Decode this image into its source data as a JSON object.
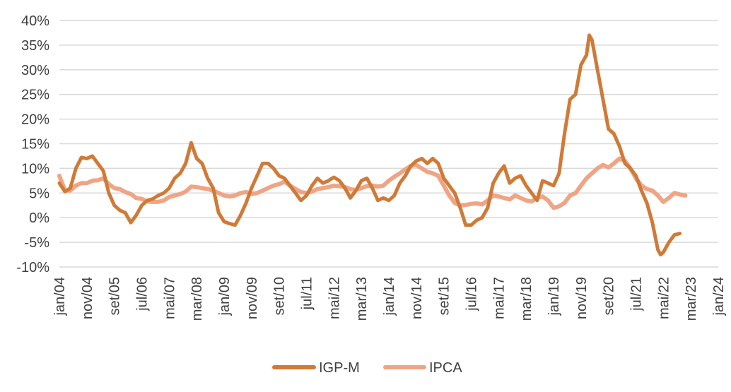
{
  "chart_data": {
    "type": "line",
    "title": "",
    "xlabel": "",
    "ylabel": "",
    "ylim": [
      -10,
      40
    ],
    "y_ticks": [
      -10,
      -5,
      0,
      5,
      10,
      15,
      20,
      25,
      30,
      35,
      40
    ],
    "y_tick_labels": [
      "-10%",
      "-5%",
      "0%",
      "5%",
      "10%",
      "15%",
      "20%",
      "25%",
      "30%",
      "35%",
      "40%"
    ],
    "x_tick_labels": [
      "jan/04",
      "nov/04",
      "set/05",
      "jul/06",
      "mai/07",
      "mar/08",
      "jan/09",
      "nov/09",
      "set/10",
      "jul/11",
      "mai/12",
      "mar/13",
      "jan/14",
      "nov/14",
      "set/15",
      "jul/16",
      "mai/17",
      "mar/18",
      "jan/19",
      "nov/19",
      "set/20",
      "jul/21",
      "mai/22",
      "mar/23",
      "jan/24"
    ],
    "grid": true,
    "legend_position": "bottom",
    "series": [
      {
        "name": "IGP-M",
        "color": "#d07a38",
        "anchors": [
          [
            0,
            7.0
          ],
          [
            2,
            5.3
          ],
          [
            4,
            6.0
          ],
          [
            6,
            10.0
          ],
          [
            8,
            12.2
          ],
          [
            10,
            12.0
          ],
          [
            12,
            12.5
          ],
          [
            14,
            11.0
          ],
          [
            16,
            9.5
          ],
          [
            18,
            5.0
          ],
          [
            20,
            2.5
          ],
          [
            22,
            1.5
          ],
          [
            24,
            1.0
          ],
          [
            26,
            -1.0
          ],
          [
            28,
            0.5
          ],
          [
            30,
            2.5
          ],
          [
            32,
            3.5
          ],
          [
            34,
            3.8
          ],
          [
            36,
            4.5
          ],
          [
            38,
            5.0
          ],
          [
            40,
            6.0
          ],
          [
            42,
            8.0
          ],
          [
            44,
            9.0
          ],
          [
            46,
            11.0
          ],
          [
            48,
            15.2
          ],
          [
            50,
            12.0
          ],
          [
            52,
            11.0
          ],
          [
            54,
            8.0
          ],
          [
            56,
            6.0
          ],
          [
            58,
            1.0
          ],
          [
            60,
            -0.8
          ],
          [
            62,
            -1.2
          ],
          [
            64,
            -1.5
          ],
          [
            66,
            0.5
          ],
          [
            68,
            3.0
          ],
          [
            70,
            6.0
          ],
          [
            72,
            8.5
          ],
          [
            74,
            11.0
          ],
          [
            76,
            11.0
          ],
          [
            78,
            10.0
          ],
          [
            80,
            8.5
          ],
          [
            82,
            8.0
          ],
          [
            84,
            6.5
          ],
          [
            86,
            5.0
          ],
          [
            88,
            3.5
          ],
          [
            90,
            4.5
          ],
          [
            92,
            6.5
          ],
          [
            94,
            8.0
          ],
          [
            96,
            7.0
          ],
          [
            98,
            7.5
          ],
          [
            100,
            8.2
          ],
          [
            102,
            7.5
          ],
          [
            104,
            6.0
          ],
          [
            106,
            4.0
          ],
          [
            108,
            5.5
          ],
          [
            110,
            7.5
          ],
          [
            112,
            8.0
          ],
          [
            114,
            6.0
          ],
          [
            116,
            3.5
          ],
          [
            118,
            4.0
          ],
          [
            120,
            3.5
          ],
          [
            122,
            4.5
          ],
          [
            124,
            7.0
          ],
          [
            126,
            8.5
          ],
          [
            128,
            10.5
          ],
          [
            130,
            11.5
          ],
          [
            132,
            12.0
          ],
          [
            134,
            11.0
          ],
          [
            136,
            12.0
          ],
          [
            138,
            11.0
          ],
          [
            140,
            8.0
          ],
          [
            142,
            6.5
          ],
          [
            144,
            5.0
          ],
          [
            146,
            2.0
          ],
          [
            148,
            -1.5
          ],
          [
            150,
            -1.5
          ],
          [
            152,
            -0.5
          ],
          [
            154,
            0.0
          ],
          [
            156,
            2.0
          ],
          [
            158,
            7.0
          ],
          [
            160,
            9.0
          ],
          [
            162,
            10.5
          ],
          [
            164,
            7.0
          ],
          [
            166,
            8.0
          ],
          [
            168,
            8.5
          ],
          [
            170,
            6.5
          ],
          [
            172,
            5.0
          ],
          [
            174,
            3.5
          ],
          [
            176,
            7.5
          ],
          [
            178,
            7.0
          ],
          [
            180,
            6.5
          ],
          [
            182,
            9.0
          ],
          [
            184,
            17.0
          ],
          [
            186,
            24.0
          ],
          [
            188,
            25.0
          ],
          [
            190,
            31.0
          ],
          [
            192,
            33.0
          ],
          [
            193,
            37.0
          ],
          [
            194,
            36.0
          ],
          [
            196,
            30.0
          ],
          [
            198,
            24.0
          ],
          [
            200,
            18.0
          ],
          [
            202,
            17.0
          ],
          [
            204,
            14.5
          ],
          [
            206,
            11.0
          ],
          [
            208,
            10.0
          ],
          [
            210,
            8.5
          ],
          [
            212,
            5.5
          ],
          [
            214,
            3.0
          ],
          [
            216,
            -1.0
          ],
          [
            218,
            -6.5
          ],
          [
            219,
            -7.5
          ],
          [
            220,
            -7.0
          ],
          [
            222,
            -5.0
          ],
          [
            224,
            -3.5
          ],
          [
            226,
            -3.2
          ]
        ]
      },
      {
        "name": "IPCA",
        "color": "#efa585",
        "anchors": [
          [
            0,
            8.5
          ],
          [
            2,
            5.5
          ],
          [
            4,
            5.5
          ],
          [
            6,
            6.5
          ],
          [
            8,
            7.0
          ],
          [
            10,
            7.0
          ],
          [
            12,
            7.5
          ],
          [
            14,
            7.6
          ],
          [
            16,
            8.0
          ],
          [
            18,
            6.8
          ],
          [
            20,
            6.0
          ],
          [
            22,
            5.8
          ],
          [
            24,
            5.2
          ],
          [
            26,
            4.8
          ],
          [
            28,
            4.0
          ],
          [
            30,
            3.8
          ],
          [
            32,
            3.3
          ],
          [
            34,
            3.2
          ],
          [
            36,
            3.2
          ],
          [
            38,
            3.5
          ],
          [
            40,
            4.2
          ],
          [
            42,
            4.5
          ],
          [
            44,
            4.8
          ],
          [
            46,
            5.3
          ],
          [
            48,
            6.3
          ],
          [
            50,
            6.2
          ],
          [
            52,
            6.0
          ],
          [
            54,
            5.8
          ],
          [
            56,
            5.5
          ],
          [
            58,
            5.0
          ],
          [
            60,
            4.5
          ],
          [
            62,
            4.3
          ],
          [
            64,
            4.5
          ],
          [
            66,
            5.0
          ],
          [
            68,
            5.2
          ],
          [
            70,
            4.8
          ],
          [
            72,
            5.0
          ],
          [
            74,
            5.5
          ],
          [
            76,
            6.0
          ],
          [
            78,
            6.5
          ],
          [
            80,
            6.8
          ],
          [
            82,
            7.3
          ],
          [
            84,
            6.5
          ],
          [
            86,
            5.8
          ],
          [
            88,
            5.2
          ],
          [
            90,
            5.0
          ],
          [
            92,
            5.3
          ],
          [
            94,
            5.8
          ],
          [
            96,
            6.0
          ],
          [
            98,
            6.2
          ],
          [
            100,
            6.5
          ],
          [
            102,
            6.4
          ],
          [
            104,
            6.2
          ],
          [
            106,
            5.8
          ],
          [
            108,
            5.6
          ],
          [
            110,
            6.0
          ],
          [
            112,
            6.4
          ],
          [
            114,
            6.5
          ],
          [
            116,
            6.3
          ],
          [
            118,
            6.5
          ],
          [
            120,
            7.5
          ],
          [
            122,
            8.3
          ],
          [
            124,
            9.0
          ],
          [
            126,
            9.8
          ],
          [
            128,
            10.5
          ],
          [
            130,
            10.7
          ],
          [
            132,
            10.0
          ],
          [
            134,
            9.3
          ],
          [
            136,
            9.0
          ],
          [
            138,
            8.5
          ],
          [
            140,
            6.5
          ],
          [
            142,
            4.5
          ],
          [
            144,
            3.0
          ],
          [
            146,
            2.5
          ],
          [
            148,
            2.6
          ],
          [
            150,
            2.8
          ],
          [
            152,
            2.9
          ],
          [
            154,
            2.7
          ],
          [
            156,
            3.5
          ],
          [
            158,
            4.5
          ],
          [
            160,
            4.3
          ],
          [
            162,
            4.0
          ],
          [
            164,
            3.7
          ],
          [
            166,
            4.5
          ],
          [
            168,
            4.0
          ],
          [
            170,
            3.5
          ],
          [
            172,
            3.3
          ],
          [
            174,
            4.0
          ],
          [
            176,
            4.3
          ],
          [
            178,
            3.5
          ],
          [
            180,
            2.0
          ],
          [
            182,
            2.3
          ],
          [
            184,
            3.0
          ],
          [
            186,
            4.5
          ],
          [
            188,
            5.0
          ],
          [
            190,
            6.5
          ],
          [
            192,
            8.0
          ],
          [
            194,
            9.0
          ],
          [
            196,
            10.0
          ],
          [
            198,
            10.7
          ],
          [
            200,
            10.2
          ],
          [
            202,
            11.0
          ],
          [
            204,
            12.0
          ],
          [
            206,
            11.5
          ],
          [
            208,
            10.0
          ],
          [
            210,
            8.0
          ],
          [
            212,
            6.5
          ],
          [
            214,
            5.8
          ],
          [
            216,
            5.5
          ],
          [
            218,
            4.5
          ],
          [
            220,
            3.2
          ],
          [
            222,
            4.0
          ],
          [
            224,
            5.0
          ],
          [
            226,
            4.7
          ],
          [
            228,
            4.5
          ]
        ]
      }
    ]
  }
}
